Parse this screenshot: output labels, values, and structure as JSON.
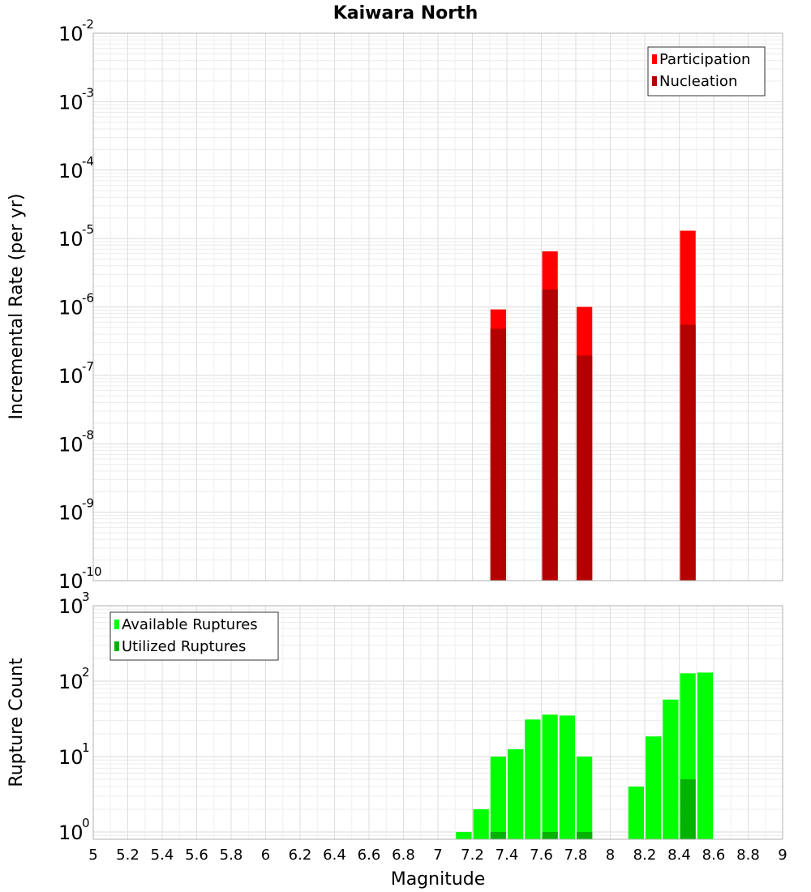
{
  "chart_data": {
    "title": "Kaiwara North",
    "xlabel": "Magnitude",
    "xlim": [
      5,
      9
    ],
    "xticks": [
      "5",
      "5.2",
      "5.4",
      "5.6",
      "5.8",
      "6",
      "6.2",
      "6.4",
      "6.6",
      "6.8",
      "7",
      "7.2",
      "7.4",
      "7.6",
      "7.8",
      "8",
      "8.2",
      "8.4",
      "8.6",
      "8.8",
      "9"
    ],
    "grid": true,
    "panels": [
      {
        "id": "rate",
        "type": "bar",
        "ylabel": "Incremental Rate (per yr)",
        "yscale": "log",
        "ylim": [
          1e-10,
          0.01
        ],
        "ytick_exponents": [
          -10,
          -9,
          -8,
          -7,
          -6,
          -5,
          -4,
          -3,
          -2
        ],
        "legend_position": "top-right",
        "series": [
          {
            "name": "Participation",
            "color": "#ff0000",
            "points": [
              {
                "x": 7.35,
                "y": 9.2e-07
              },
              {
                "x": 7.65,
                "y": 6.5e-06
              },
              {
                "x": 7.85,
                "y": 1e-06
              },
              {
                "x": 8.45,
                "y": 1.3e-05
              }
            ]
          },
          {
            "name": "Nucleation",
            "color": "#b30000",
            "points": [
              {
                "x": 7.35,
                "y": 4.8e-07
              },
              {
                "x": 7.65,
                "y": 1.8e-06
              },
              {
                "x": 7.85,
                "y": 1.95e-07
              },
              {
                "x": 8.45,
                "y": 5.5e-07
              }
            ]
          }
        ]
      },
      {
        "id": "count",
        "type": "bar",
        "ylabel": "Rupture Count",
        "yscale": "log",
        "ylim": [
          0.8,
          1000
        ],
        "ytick_exponents": [
          0,
          1,
          2,
          3
        ],
        "legend_position": "top-left",
        "series": [
          {
            "name": "Available Ruptures",
            "color": "#00ff00",
            "points": [
              {
                "x": 7.15,
                "y": 1
              },
              {
                "x": 7.25,
                "y": 2
              },
              {
                "x": 7.35,
                "y": 10
              },
              {
                "x": 7.45,
                "y": 12.5
              },
              {
                "x": 7.55,
                "y": 31
              },
              {
                "x": 7.65,
                "y": 36
              },
              {
                "x": 7.75,
                "y": 35
              },
              {
                "x": 7.85,
                "y": 10
              },
              {
                "x": 8.15,
                "y": 4
              },
              {
                "x": 8.25,
                "y": 18.5
              },
              {
                "x": 8.35,
                "y": 57
              },
              {
                "x": 8.45,
                "y": 127
              },
              {
                "x": 8.55,
                "y": 130
              }
            ]
          },
          {
            "name": "Utilized Ruptures",
            "color": "#00b300",
            "points": [
              {
                "x": 7.35,
                "y": 1
              },
              {
                "x": 7.65,
                "y": 1
              },
              {
                "x": 7.85,
                "y": 1
              },
              {
                "x": 8.45,
                "y": 5
              }
            ]
          }
        ]
      }
    ]
  }
}
